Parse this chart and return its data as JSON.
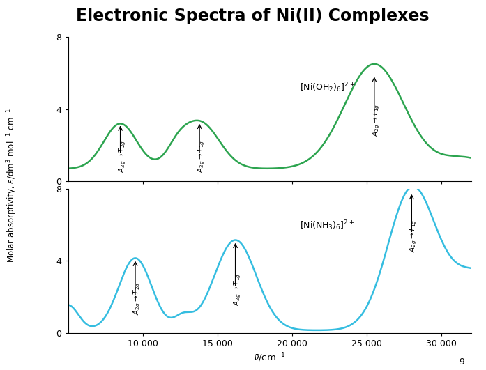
{
  "title": "Electronic Spectra of Ni(II) Complexes",
  "title_fontsize": 17,
  "title_fontweight": "bold",
  "xlabel": "$\\bar{\\nu}$/cm$^{-1}$",
  "ylabel": "Molar absorptivity, $\\varepsilon$/dm$^3$ mol$^{-1}$ cm$^{-1}$",
  "xlim": [
    5000,
    32000
  ],
  "ylim": [
    0,
    8
  ],
  "xticks": [
    10000,
    15000,
    20000,
    25000,
    30000
  ],
  "xticklabels": [
    "10 000",
    "15 000",
    "20 000",
    "25 000",
    "30 000"
  ],
  "yticks": [
    0,
    4,
    8
  ],
  "background_color": "#ffffff",
  "color_green": "#2ca44f",
  "color_blue": "#35bde0",
  "green_label": "[Ni(OH$_2$)$_6$]$^{2+}$",
  "blue_label": "[Ni(NH$_3$)$_6$]$^{2+}$"
}
